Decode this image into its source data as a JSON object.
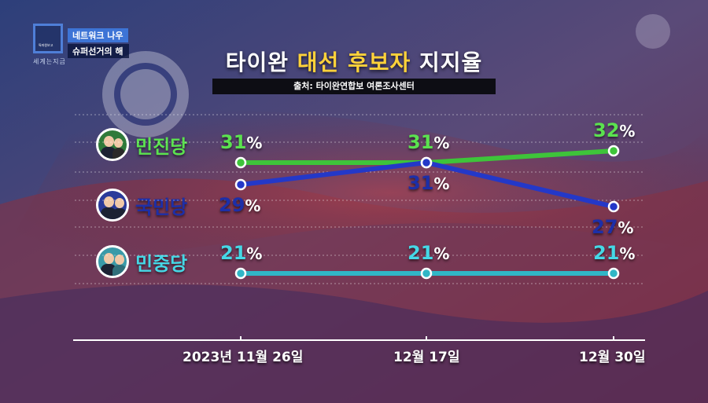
{
  "broadcast": {
    "logo_text": "특파원보고",
    "logo_sub": "세계는지금",
    "program_line1": "네트워크 나우",
    "program_line2": "슈퍼선거의 해"
  },
  "title": {
    "part1": "타이완",
    "highlight": "대선 후보자",
    "part2": "지지율"
  },
  "source": "출처: 타이완연합보 여론조사센터",
  "parties": [
    {
      "name": "민진당",
      "color": "#3ec43a"
    },
    {
      "name": "국민당",
      "color": "#2438c8"
    },
    {
      "name": "민중당",
      "color": "#30b6c6"
    }
  ],
  "chart_data": {
    "type": "line",
    "title": "타이완 대선 후보자 지지율",
    "x": [
      "2023년 11월 26일",
      "12월 17일",
      "12월 30일"
    ],
    "unit": "%",
    "series": [
      {
        "name": "민진당",
        "values": [
          31,
          31,
          32
        ],
        "color": "#3ec43a",
        "label_color": "#5be24f"
      },
      {
        "name": "국민당",
        "values": [
          29,
          31,
          27
        ],
        "color": "#2438c8",
        "label_color": "#1d2fa8"
      },
      {
        "name": "민중당",
        "values": [
          21,
          21,
          21
        ],
        "color": "#30b6c6",
        "label_color": "#45d8e6"
      }
    ],
    "grid": true
  }
}
